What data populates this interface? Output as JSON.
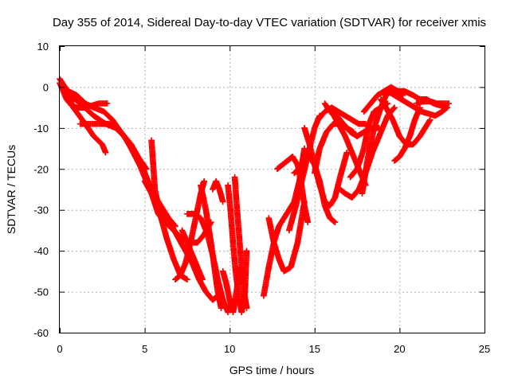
{
  "chart_data": {
    "type": "scatter",
    "title": "Day 355 of 2014, Sidereal Day-to-day VTEC variation (SDTVAR) for receiver xmis",
    "xlabel": "GPS time / hours",
    "ylabel": "SDTVAR / TECUs",
    "xlim": [
      0,
      25
    ],
    "ylim": [
      -60,
      10
    ],
    "xticks": [
      "0",
      "5",
      "10",
      "15",
      "20",
      "25"
    ],
    "yticks": [
      "10",
      "0",
      "-10",
      "-20",
      "-30",
      "-40",
      "-50",
      "-60"
    ],
    "grid": true,
    "marker": "plus",
    "color": "#ff0000",
    "tracks": [
      {
        "x": [
          0.0,
          0.3,
          0.8,
          1.5,
          2.0,
          2.5,
          2.7
        ],
        "y": [
          2,
          0,
          -5,
          -9,
          -12,
          -14,
          -16
        ]
      },
      {
        "x": [
          0.0,
          0.2,
          0.4,
          0.7,
          1.0,
          1.4,
          1.9,
          2.3,
          2.8
        ],
        "y": [
          1,
          -1,
          -3,
          -4.5,
          -5,
          -5,
          -4.5,
          -4,
          -4
        ]
      },
      {
        "x": [
          0.1,
          0.5,
          1.0,
          1.5,
          2.0,
          2.6,
          3.1,
          3.6,
          4.1,
          4.6,
          5.1
        ],
        "y": [
          1,
          -1,
          -2,
          -4,
          -5,
          -6,
          -8,
          -11,
          -14,
          -17,
          -20
        ]
      },
      {
        "x": [
          0.2,
          0.6,
          1.2,
          2.0,
          2.7,
          3.3,
          3.8,
          4.2,
          4.6,
          5.0,
          5.4,
          5.8
        ],
        "y": [
          0,
          -2,
          -4,
          -7,
          -9,
          -10,
          -12,
          -14,
          -17,
          -21,
          -26,
          -30
        ]
      },
      {
        "x": [
          1.2,
          1.8,
          2.4,
          2.9,
          3.4,
          3.8,
          4.2,
          4.7,
          5.1
        ],
        "y": [
          -9,
          -9,
          -9,
          -9,
          -10,
          -12,
          -15,
          -19,
          -23
        ]
      },
      {
        "x": [
          2.8,
          3.3,
          3.8,
          4.3,
          4.8,
          5.2,
          5.5,
          5.8,
          6.1,
          6.4,
          6.8
        ],
        "y": [
          -9,
          -10,
          -12,
          -15,
          -19,
          -23,
          -26,
          -28,
          -30,
          -32,
          -34
        ]
      },
      {
        "x": [
          5.4,
          5.6,
          5.9,
          6.3,
          6.7,
          7.1,
          7.5
        ],
        "y": [
          -13,
          -25,
          -31,
          -37,
          -42,
          -46,
          -47
        ]
      },
      {
        "x": [
          5.0,
          5.4,
          5.8,
          6.2,
          6.6,
          7.0,
          7.4,
          7.8,
          8.2,
          8.6,
          9.0,
          9.3
        ],
        "y": [
          -23,
          -26,
          -29,
          -31,
          -34,
          -37,
          -40,
          -43,
          -47,
          -50,
          -52,
          -51
        ]
      },
      {
        "x": [
          5.4,
          5.8,
          6.2,
          6.7,
          7.2,
          7.7,
          8.1,
          8.5,
          8.9
        ],
        "y": [
          -26,
          -31,
          -33,
          -35,
          -37,
          -38,
          -38,
          -36,
          -33
        ]
      },
      {
        "x": [
          7.2,
          7.6,
          8.1,
          8.4
        ],
        "y": [
          -35,
          -39,
          -44,
          -47
        ]
      },
      {
        "x": [
          6.8,
          7.1,
          7.4,
          7.7,
          8.0,
          8.3,
          8.5
        ],
        "y": [
          -47,
          -46,
          -43,
          -38,
          -32,
          -26,
          -23
        ]
      },
      {
        "x": [
          7.5,
          7.9,
          8.3,
          8.7,
          9.0,
          9.3,
          9.6,
          9.9
        ],
        "y": [
          -31,
          -31,
          -32,
          -36,
          -41,
          -47,
          -52,
          -55
        ]
      },
      {
        "x": [
          8.3,
          8.6,
          8.9,
          9.1,
          9.3,
          9.5
        ],
        "y": [
          -24,
          -30,
          -38,
          -44,
          -50,
          -54
        ]
      },
      {
        "x": [
          9.0,
          9.2,
          9.4,
          9.6
        ],
        "y": [
          -25,
          -23,
          -25,
          -28
        ]
      },
      {
        "x": [
          9.6,
          9.8,
          10.0,
          10.2,
          10.4,
          10.6
        ],
        "y": [
          -45,
          -48,
          -52,
          -55,
          -50,
          -44
        ]
      },
      {
        "x": [
          9.9,
          10.05,
          10.2,
          10.35,
          10.5,
          10.7,
          10.9,
          11.0
        ],
        "y": [
          -24,
          -30,
          -38,
          -45,
          -50,
          -55,
          -50,
          -40
        ]
      },
      {
        "x": [
          10.3,
          10.4,
          10.55,
          10.7,
          10.85,
          11.0
        ],
        "y": [
          -22,
          -28,
          -36,
          -44,
          -50,
          -54
        ]
      },
      {
        "x": [
          12.0,
          12.3,
          12.6,
          12.9,
          13.2,
          13.5,
          13.8,
          14.1,
          14.4
        ],
        "y": [
          -51,
          -44,
          -38,
          -34,
          -32,
          -30,
          -28,
          -23,
          -15
        ]
      },
      {
        "x": [
          12.3,
          12.6,
          12.9,
          13.2,
          13.6,
          14.0,
          14.4
        ],
        "y": [
          -32,
          -38,
          -42,
          -45,
          -44,
          -38,
          -28
        ]
      },
      {
        "x": [
          12.8,
          13.1,
          13.4,
          13.7,
          14.0,
          14.2,
          14.4,
          14.6
        ],
        "y": [
          -20,
          -19,
          -18,
          -17,
          -19,
          -23,
          -29,
          -33
        ]
      },
      {
        "x": [
          13.8,
          14.1,
          14.4,
          14.7,
          15.0,
          15.3,
          15.6,
          15.9,
          16.2
        ],
        "y": [
          -21,
          -20,
          -18,
          -17,
          -19,
          -23,
          -29,
          -32,
          -33
        ]
      },
      {
        "x": [
          13.5,
          13.9,
          14.3,
          14.7,
          15.0,
          15.3
        ],
        "y": [
          -35,
          -29,
          -22,
          -15,
          -10,
          -7
        ]
      },
      {
        "x": [
          14.4,
          14.7,
          15.0,
          15.3,
          15.6,
          15.9,
          16.2,
          16.5,
          16.9
        ],
        "y": [
          -10,
          -14,
          -19,
          -24,
          -28,
          -29,
          -27,
          -22,
          -16
        ]
      },
      {
        "x": [
          15.0,
          15.3,
          15.7,
          16.1,
          16.5,
          16.9,
          17.3
        ],
        "y": [
          -21,
          -15,
          -11,
          -9,
          -9,
          -10,
          -11
        ]
      },
      {
        "x": [
          15.2,
          15.6,
          16.0,
          16.4,
          16.8,
          17.2,
          17.6,
          18.0
        ],
        "y": [
          -8,
          -6,
          -5,
          -6,
          -7,
          -8,
          -9,
          -9
        ]
      },
      {
        "x": [
          15.6,
          15.9,
          16.3,
          16.7,
          17.1,
          17.5,
          17.9,
          18.3,
          18.8
        ],
        "y": [
          -4,
          -6,
          -7,
          -9,
          -11,
          -12,
          -11,
          -10,
          -10
        ]
      },
      {
        "x": [
          16.0,
          16.4,
          16.8,
          17.2,
          17.6,
          18.0
        ],
        "y": [
          -6,
          -9,
          -12,
          -16,
          -20,
          -24
        ]
      },
      {
        "x": [
          16.5,
          16.8,
          17.2,
          17.6,
          18.0,
          18.4,
          18.9,
          19.3,
          19.7
        ],
        "y": [
          -25,
          -26,
          -27,
          -25,
          -21,
          -16,
          -11,
          -7,
          -5
        ]
      },
      {
        "x": [
          17.1,
          17.5,
          17.9,
          18.2,
          18.5,
          18.9,
          19.3
        ],
        "y": [
          -22,
          -20,
          -15,
          -9,
          -6,
          -5,
          -4
        ]
      },
      {
        "x": [
          17.8,
          18.1,
          18.5,
          18.9,
          19.2,
          19.5,
          19.8,
          20.2
        ],
        "y": [
          -26,
          -18,
          -10,
          -5,
          -2,
          -1,
          -1,
          -2
        ]
      },
      {
        "x": [
          17.9,
          18.3,
          18.7,
          19.1,
          19.5,
          19.9
        ],
        "y": [
          -6,
          -4,
          -2,
          -1,
          0,
          -1
        ]
      },
      {
        "x": [
          18.9,
          19.2,
          19.6,
          20.0,
          20.4,
          20.8,
          21.2,
          21.5,
          21.8
        ],
        "y": [
          -3,
          -5,
          -8,
          -12,
          -14,
          -14,
          -12,
          -10,
          -8
        ]
      },
      {
        "x": [
          19.7,
          20.0,
          20.3,
          20.6,
          20.9,
          21.2
        ],
        "y": [
          -18,
          -17,
          -15,
          -12,
          -8,
          -5
        ]
      },
      {
        "x": [
          19.3,
          19.7,
          20.1,
          20.5,
          20.9,
          21.3,
          21.7,
          22.1,
          22.5,
          22.8
        ],
        "y": [
          -1,
          -2,
          -3,
          -4,
          -5,
          -6,
          -6.5,
          -7,
          -6,
          -5
        ]
      },
      {
        "x": [
          19.8,
          20.3,
          20.8,
          21.2,
          21.6,
          22.0,
          22.4,
          22.8
        ],
        "y": [
          -1,
          -1,
          -2,
          -3,
          -3,
          -4,
          -4.5,
          -5
        ]
      },
      {
        "x": [
          21.0,
          21.4,
          21.8,
          22.2,
          22.6,
          22.9
        ],
        "y": [
          -4,
          -3.5,
          -3.5,
          -4,
          -4,
          -4
        ]
      }
    ]
  }
}
